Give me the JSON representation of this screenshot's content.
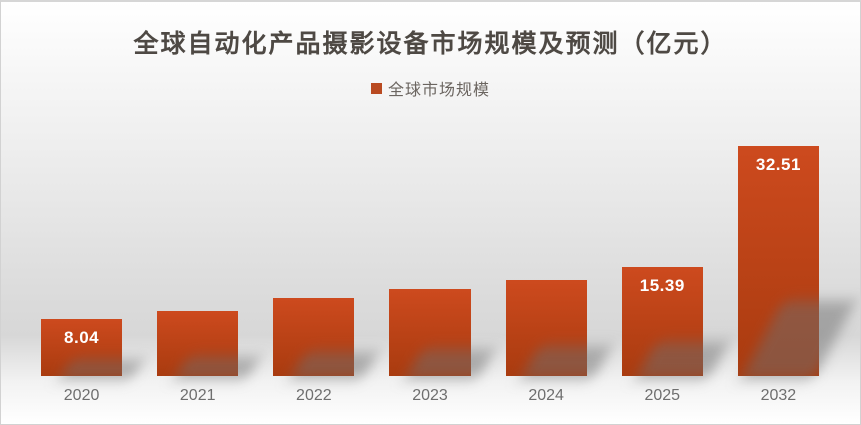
{
  "chart_data": {
    "type": "bar",
    "title": "全球自动化产品摄影设备市场规模及预测（亿元）",
    "legend": [
      "全球市场规模"
    ],
    "legend_position": "top-center",
    "categories": [
      "2020",
      "2021",
      "2022",
      "2023",
      "2024",
      "2025",
      "2032"
    ],
    "values": [
      8.04,
      9.2,
      11.0,
      12.3,
      13.6,
      15.39,
      32.51
    ],
    "data_labels": [
      "8.04",
      null,
      null,
      null,
      null,
      "15.39",
      "32.51"
    ],
    "values_estimated_from_pixels": [
      false,
      true,
      true,
      true,
      true,
      false,
      false
    ],
    "xlabel": "",
    "ylabel": "",
    "ylim": [
      0,
      33
    ],
    "grid": false,
    "axes_hidden": true
  },
  "colors": {
    "bar_gradient_top": "#cd4a1e",
    "bar_gradient_bottom": "#a93b0f",
    "legend_marker": "#b94a21",
    "title_text": "#4e4944",
    "legend_text": "#6b6560",
    "axis_label_text": "#6e6e6e",
    "data_label_text": "#ffffff",
    "background_mid": "#d7d7d7"
  }
}
